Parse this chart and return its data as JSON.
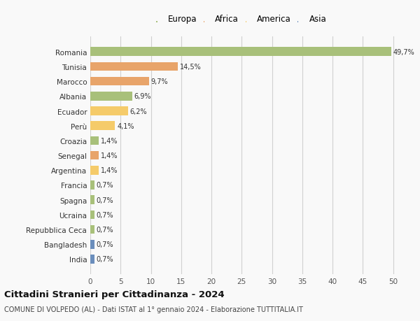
{
  "categories": [
    "India",
    "Bangladesh",
    "Repubblica Ceca",
    "Ucraina",
    "Spagna",
    "Francia",
    "Argentina",
    "Senegal",
    "Croazia",
    "Perù",
    "Ecuador",
    "Albania",
    "Marocco",
    "Tunisia",
    "Romania"
  ],
  "values": [
    0.7,
    0.7,
    0.7,
    0.7,
    0.7,
    0.7,
    1.4,
    1.4,
    1.4,
    4.1,
    6.2,
    6.9,
    9.7,
    14.5,
    49.7
  ],
  "labels": [
    "0,7%",
    "0,7%",
    "0,7%",
    "0,7%",
    "0,7%",
    "0,7%",
    "1,4%",
    "1,4%",
    "1,4%",
    "4,1%",
    "6,2%",
    "6,9%",
    "9,7%",
    "14,5%",
    "49,7%"
  ],
  "colors": [
    "#6b8ebc",
    "#6b8ebc",
    "#a8c07a",
    "#a8c07a",
    "#a8c07a",
    "#a8c07a",
    "#f5cb6a",
    "#e8a46a",
    "#a8c07a",
    "#f5cb6a",
    "#f5cb6a",
    "#a8c07a",
    "#e8a46a",
    "#e8a46a",
    "#a8c07a"
  ],
  "legend_labels": [
    "Europa",
    "Africa",
    "America",
    "Asia"
  ],
  "legend_colors": [
    "#a8c07a",
    "#e8a46a",
    "#f5cb6a",
    "#6b8ebc"
  ],
  "title": "Cittadini Stranieri per Cittadinanza - 2024",
  "subtitle": "COMUNE DI VOLPEDO (AL) - Dati ISTAT al 1° gennaio 2024 - Elaborazione TUTTITALIA.IT",
  "xlim": [
    0,
    52
  ],
  "xticks": [
    0,
    5,
    10,
    15,
    20,
    25,
    30,
    35,
    40,
    45,
    50
  ],
  "background_color": "#f9f9f9",
  "grid_color": "#d0d0d0",
  "bar_height": 0.6
}
